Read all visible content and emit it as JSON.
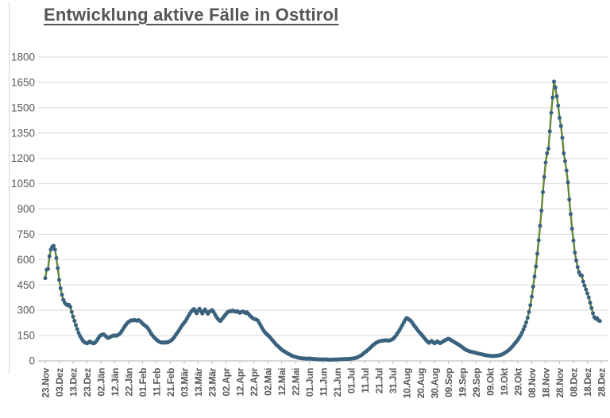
{
  "title": "Entwicklung aktive Fälle in Osttirol",
  "colors": {
    "line": "#648937",
    "marker": "#3a627e",
    "gridline": "#d9d9d9",
    "axis": "#bfbfbf",
    "tick_label": "#595959",
    "title_text": "#555555",
    "background": "#ffffff"
  },
  "chart_data": {
    "type": "line",
    "title": "Entwicklung aktive Fälle in Osttirol",
    "xlabel": "",
    "ylabel": "",
    "grid": true,
    "legend": false,
    "ylim": [
      0,
      1800
    ],
    "y_ticks": [
      0,
      150,
      300,
      450,
      600,
      750,
      900,
      1050,
      1200,
      1350,
      1500,
      1650,
      1800
    ],
    "x_tick_labels": [
      "23.Nov",
      "03.Dez",
      "13.Dez",
      "23.Dez",
      "02.Jän",
      "12.Jän",
      "22.Jän",
      "01.Feb",
      "11.Feb",
      "21.Feb",
      "03.Mär",
      "13.Mär",
      "23.Mär",
      "02.Apr",
      "12.Apr",
      "22.Apr",
      "02.Mai",
      "12.Mai",
      "22.Mai",
      "01.Jun",
      "11.Jun",
      "21.Jun",
      "01.Jul",
      "11.Jul",
      "21.Jul",
      "31.Jul",
      "10.Aug",
      "20.Aug",
      "30.Aug",
      "09.Sep",
      "19.Sep",
      "29.Sep",
      "09.Okt",
      "19.Okt",
      "29.Okt",
      "08.Nov",
      "18.Nov",
      "28.Nov",
      "08.Dez",
      "18.Dez",
      "28.Dez"
    ],
    "days_per_tick": 10,
    "series": [
      {
        "name": "aktive Fälle",
        "marker": "circle",
        "line_color": "#648937",
        "marker_color": "#3a627e",
        "values": [
          490,
          540,
          545,
          620,
          660,
          675,
          682,
          660,
          610,
          550,
          480,
          430,
          392,
          362,
          345,
          335,
          330,
          332,
          320,
          290,
          262,
          237,
          212,
          188,
          166,
          148,
          133,
          121,
          112,
          107,
          104,
          108,
          115,
          110,
          106,
          104,
          110,
          120,
          132,
          145,
          152,
          156,
          157,
          150,
          143,
          136,
          138,
          143,
          147,
          150,
          151,
          149,
          152,
          157,
          164,
          176,
          189,
          202,
          214,
          224,
          231,
          237,
          241,
          239,
          243,
          240,
          238,
          242,
          238,
          230,
          221,
          214,
          208,
          201,
          191,
          178,
          164,
          152,
          142,
          134,
          126,
          119,
          114,
          110,
          108,
          110,
          107,
          111,
          109,
          114,
          118,
          124,
          132,
          143,
          156,
          167,
          178,
          192,
          205,
          216,
          226,
          238,
          252,
          266,
          280,
          292,
          302,
          307,
          292,
          282,
          300,
          309,
          294,
          281,
          295,
          305,
          290,
          279,
          290,
          296,
          301,
          291,
          277,
          262,
          251,
          241,
          236,
          246,
          257,
          267,
          277,
          287,
          292,
          296,
          294,
          298,
          294,
          291,
          295,
          289,
          285,
          289,
          293,
          289,
          284,
          288,
          280,
          270,
          262,
          255,
          249,
          247,
          244,
          238,
          224,
          210,
          195,
          181,
          170,
          161,
          153,
          146,
          137,
          127,
          117,
          107,
          97,
          90,
          83,
          75,
          67,
          61,
          56,
          51,
          46,
          41,
          37,
          33,
          29,
          26,
          24,
          21,
          19,
          17,
          16,
          15,
          14,
          14,
          13,
          13,
          14,
          13,
          12,
          11,
          11,
          10,
          9,
          9,
          9,
          9,
          9,
          9,
          8,
          8,
          7,
          7,
          7,
          7,
          8,
          8,
          9,
          9,
          9,
          10,
          10,
          11,
          11,
          11,
          12,
          12,
          13,
          14,
          15,
          17,
          19,
          23,
          27,
          32,
          37,
          44,
          51,
          57,
          64,
          71,
          79,
          87,
          94,
          101,
          107,
          111,
          115,
          117,
          119,
          120,
          121,
          122,
          121,
          120,
          122,
          125,
          129,
          137,
          147,
          159,
          171,
          184,
          199,
          214,
          229,
          244,
          254,
          249,
          243,
          237,
          226,
          214,
          203,
          193,
          181,
          171,
          163,
          153,
          143,
          133,
          123,
          114,
          107,
          113,
          118,
          110,
          104,
          109,
          116,
          110,
          105,
          109,
          114,
          119,
          124,
          128,
          131,
          128,
          123,
          118,
          113,
          108,
          103,
          98,
          93,
          87,
          81,
          75,
          69,
          64,
          61,
          57,
          55,
          53,
          51,
          49,
          47,
          44,
          43,
          41,
          39,
          37,
          35,
          33,
          32,
          31,
          30,
          29,
          29,
          29,
          30,
          31,
          32,
          34,
          36,
          40,
          44,
          50,
          55,
          61,
          68,
          76,
          85,
          95,
          105,
          115,
          125,
          138,
          152,
          168,
          186,
          205,
          228,
          255,
          290,
          330,
          380,
          440,
          500,
          560,
          635,
          715,
          800,
          890,
          1000,
          1090,
          1175,
          1230,
          1258,
          1360,
          1470,
          1560,
          1655,
          1620,
          1568,
          1512,
          1440,
          1392,
          1322,
          1230,
          1183,
          1128,
          1058,
          956,
          870,
          783,
          713,
          642,
          595,
          556,
          525,
          509,
          505,
          470,
          446,
          423,
          400,
          376,
          345,
          313,
          282,
          259,
          250,
          253,
          240,
          236
        ]
      }
    ]
  }
}
